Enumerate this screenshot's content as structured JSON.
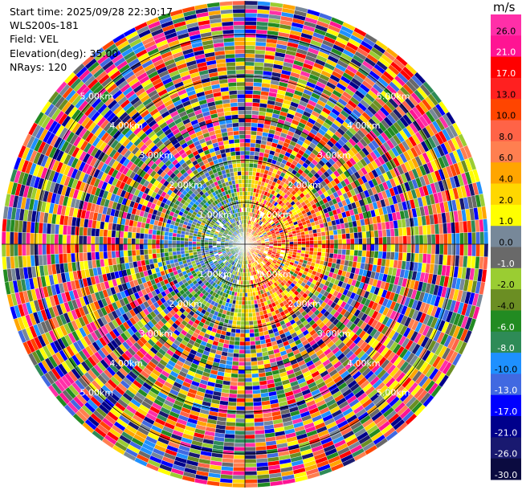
{
  "header": {
    "start_time": "Start time: 2025/09/28 22:30:17",
    "instrument": "WLS200s-181",
    "field": "Field: VEL",
    "elevation": "Elevation(deg): 35.00",
    "nrays": "NRays: 120"
  },
  "chart_data": {
    "type": "heatmap",
    "subtype": "polar-ppi",
    "title": "",
    "nrays": 120,
    "range_rings": [
      {
        "label": "1.00km",
        "range_km": 1.0
      },
      {
        "label": "2.00km",
        "range_km": 2.0
      },
      {
        "label": "3.00km",
        "range_km": 3.0
      },
      {
        "label": "4.00km",
        "range_km": 4.0
      },
      {
        "label": "5.00km",
        "range_km": 5.0
      }
    ],
    "max_range_km": 5.8,
    "colorbar": {
      "unit": "m/s",
      "ticks": [
        "26.0",
        "21.0",
        "17.0",
        "13.0",
        "10.0",
        "8.0",
        "6.0",
        "4.0",
        "2.0",
        "1.0",
        "0.0",
        "-1.0",
        "-2.0",
        "-4.0",
        "-6.0",
        "-8.0",
        "-10.0",
        "-13.0",
        "-17.0",
        "-21.0",
        "-26.0",
        "-30.0"
      ],
      "colors": [
        "#ff2fa8",
        "#ff1493",
        "#ff0000",
        "#ff2020",
        "#ff4500",
        "#ff6347",
        "#ff7f50",
        "#ffa500",
        "#ffd700",
        "#ffff00",
        "#778899",
        "#696969",
        "#9acd32",
        "#6b8e23",
        "#228b22",
        "#2e8b57",
        "#1e90ff",
        "#4169e1",
        "#0000ff",
        "#00008b",
        "#191970",
        "#0b0b40"
      ]
    }
  }
}
